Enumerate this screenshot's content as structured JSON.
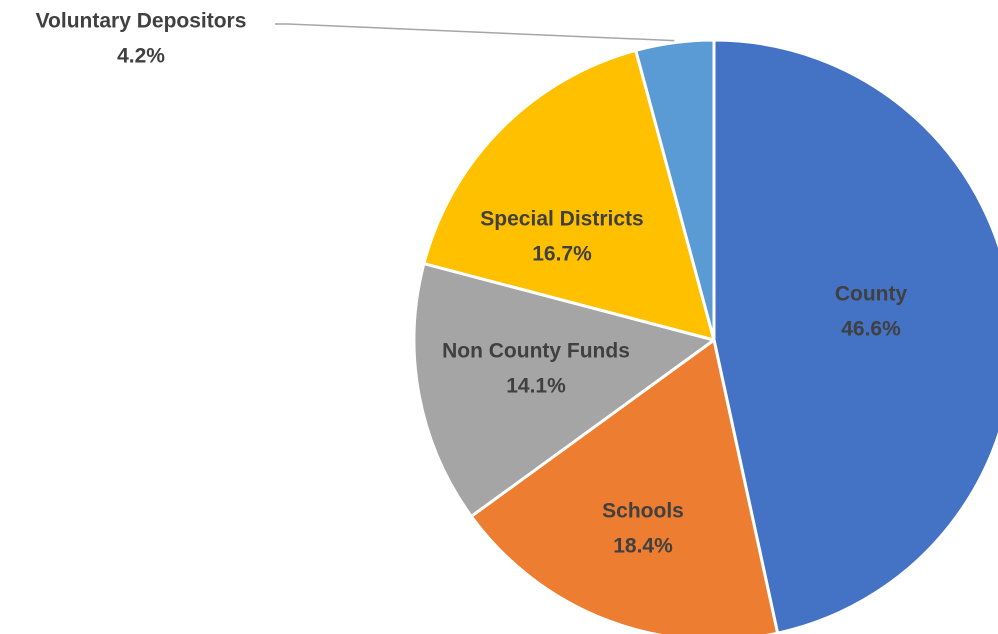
{
  "chart_data": {
    "type": "pie",
    "start_angle_deg": 0,
    "direction": "clockwise",
    "slices": [
      {
        "label": "County",
        "value": 46.6,
        "value_label": "46.6%",
        "color": "#4472C4"
      },
      {
        "label": "Schools",
        "value": 18.4,
        "value_label": "18.4%",
        "color": "#ED7D31"
      },
      {
        "label": "Non County Funds",
        "value": 14.1,
        "value_label": "14.1%",
        "color": "#A5A5A5"
      },
      {
        "label": "Special Districts",
        "value": 16.7,
        "value_label": "16.7%",
        "color": "#FFC000"
      },
      {
        "label": "Voluntary Depositors",
        "value": 4.2,
        "value_label": "4.2%",
        "color": "#5B9BD5"
      }
    ],
    "slice_border_color": "#FFFFFF",
    "label_color": "#404040",
    "leader_line_color": "#A6A6A6"
  }
}
